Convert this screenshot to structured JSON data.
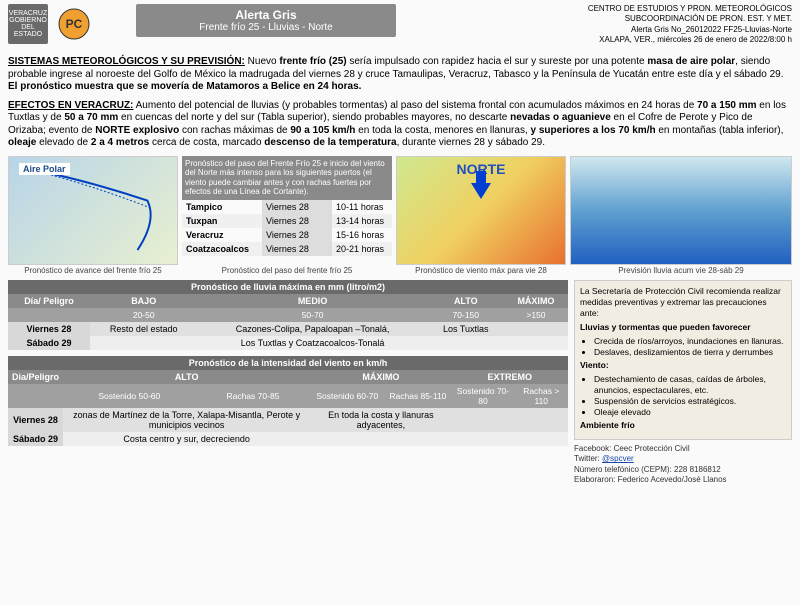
{
  "header": {
    "logo_gov": "VERACRUZ GOBIERNO DEL ESTADO",
    "logo_pc": "PC Secretaría de Protección Civil",
    "title_line1": "Alerta Gris",
    "title_line2": "Frente frío 25 - Lluvias - Norte",
    "meta1": "CENTRO DE ESTUDIOS Y PRON. METEOROLÓGICOS",
    "meta2": "SUBCOORDINACIÓN DE PRON.  EST. Y MET.",
    "meta3": "Alerta Gris No_26012022 FF25-Lluvias-Norte",
    "meta4": "XALAPA, VER., miércoles 26 de enero de 2022/8:00 h"
  },
  "section1": {
    "label": "SISTEMAS METEOROLÓGICOS Y SU PREVISIÓN:",
    "text_before_b1": " Nuevo ",
    "b1": "frente frío (25)",
    "text_mid": " sería impulsado con rapidez hacia el sur y sureste por una potente ",
    "b2": "masa de aire polar",
    "text_after": ", siendo probable ingrese al noroeste del Golfo de México la madrugada del viernes 28 y cruce Tamaulipas, Veracruz, Tabasco y la Península de Yucatán entre este día y el sábado 29. ",
    "b3": "El pronóstico muestra que se movería de Matamoros a Belice en 24 horas."
  },
  "section2": {
    "label": "EFECTOS EN VERACRUZ:",
    "t1": "  Aumento del potencial de lluvias (y probables tormentas) al paso del sistema frontal con acumulados máximos en 24 horas de ",
    "b1": "70 a 150 mm",
    "t2": " en los Tuxtlas y de ",
    "b2": "50 a 70 mm",
    "t3": " en cuencas del norte y del sur (Tabla superior), siendo probables mayores, no descarte ",
    "b3": "nevadas o aguanieve",
    "t4": " en el Cofre de Perote y Pico de Orizaba; evento de ",
    "b4": "NORTE explosivo",
    "t5": " con rachas máximas de ",
    "b5": "90 a 105 km/h",
    "t6": " en toda la costa, menores en llanuras, ",
    "b6": "y superiores a los 70 km/h",
    "t7": " en montañas (tabla inferior), ",
    "b7": "oleaje",
    "t8": " elevado de ",
    "b8": "2 a 4 metros",
    "t9": " cerca de costa, marcado ",
    "b9": "descenso de la temperatura",
    "t10": ", durante viernes 28 y sábado 29."
  },
  "graphics": {
    "g1_label": "Pronóstico de avance del frente frío 25",
    "g1_airepolar": "Aire Polar",
    "g2_desc": "Pronóstico del paso del Frente Frío 25 e inicio del viento del Norte más intenso  para los siguientes puertos (el viento puede cambiar antes y con rachas fuertes por efectos de una Línea de Cortante).",
    "g2_label": "Pronóstico del paso del frente frío 25",
    "ports": [
      {
        "name": "Tampico",
        "day": "Viernes 28",
        "hour": "10-11 horas"
      },
      {
        "name": "Tuxpan",
        "day": "Viernes 28",
        "hour": "13-14 horas"
      },
      {
        "name": "Veracruz",
        "day": "Viernes 28",
        "hour": "15-16 horas"
      },
      {
        "name": "Coatzacoalcos",
        "day": "Viernes 28",
        "hour": "20-21 horas"
      }
    ],
    "g3_label": "Pronóstico de viento máx para vie 28",
    "g3_norte": "NORTE",
    "g4_label": "Previsión lluvia acum  vie 28-sáb 29"
  },
  "rain_table": {
    "title": "Pronóstico de lluvia máxima en mm (litro/m2)",
    "cols": [
      "Día/ Peligro",
      "BAJO",
      "MEDIO",
      "ALTO",
      "MÁXIMO"
    ],
    "ranges": [
      "",
      "20-50",
      "50-70",
      "70-150",
      ">150"
    ],
    "rows": [
      [
        "Viernes 28",
        "Resto del estado",
        "Cazones-Colipa, Papaloapan –Tonalá,",
        "Los Tuxtlas",
        ""
      ],
      [
        "Sábado 29",
        "",
        "Los Tuxtlas y Coatzacoalcos-Tonalá",
        "",
        ""
      ]
    ]
  },
  "wind_table": {
    "title": "Pronóstico de la intensidad del viento en km/h",
    "cols": [
      "Dia/Peligro",
      "ALTO",
      "MÁXIMO",
      "EXTREMO"
    ],
    "sub": [
      "",
      "Sostenido 50-60",
      "Rachas 70-85",
      "Sostenido 60-70",
      "Rachas 85-110",
      "Sostenido 70-80",
      "Rachas > 110"
    ],
    "rows": [
      [
        "Viernes 28",
        "zonas de Martínez de la Torre, Xalapa-Misantla, Perote y municipios vecinos",
        "En toda la costa y llanuras adyacentes,",
        ""
      ],
      [
        "Sábado 29",
        "Costa  centro y sur, decreciendo",
        "",
        ""
      ]
    ]
  },
  "advisory": {
    "intro": "La Secretaría de Protección Civil recomienda realizar medidas preventivas y extremar las precauciones ante:",
    "h1": "Lluvias y tormentas que pueden favorecer",
    "l1": [
      "Crecida de ríos/arroyos, inundaciones en llanuras.",
      "Deslaves, deslizamientos de tierra y derrumbes"
    ],
    "h2": "Viento:",
    "l2": [
      "Destechamiento de casas, caídas de árboles, anuncios, espectaculares, etc.",
      "Suspensión de servicios estratégicos.",
      "Oleaje elevado"
    ],
    "h3": "Ambiente frío"
  },
  "footer": {
    "fb": "Facebook: Ceec Protección Civil",
    "tw_label": "Twitter: ",
    "tw_handle": "@spcver",
    "tel": "Número telefónico (CEPM):  228 8186812",
    "author": "Elaboraron: Federico Acevedo/José Llanos"
  },
  "colors": {
    "header_bg": "#8a8a8a",
    "tbl_title": "#6a6a6a",
    "tbl_hdr": "#8a8a8a",
    "tbl_sub": "#a0a0a0",
    "advisory_bg": "#f2ede2"
  }
}
